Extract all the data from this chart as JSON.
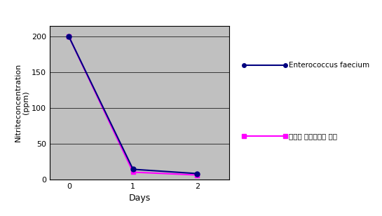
{
  "days": [
    0,
    1,
    2
  ],
  "series1_values": [
    200,
    14,
    8
  ],
  "series1_label": "Enterococcus faecium",
  "series1_color": "#000080",
  "series1_marker": "o",
  "series2_values": [
    200,
    10,
    6
  ],
  "series2_label": "러시아 발효소세지 균주",
  "series2_color": "#ff00ff",
  "series2_marker": "s",
  "xlabel": "Days",
  "ylabel": "Nitriteconcentration\n(ppm)",
  "xlim": [
    -0.3,
    2.5
  ],
  "ylim": [
    0,
    215
  ],
  "yticks": [
    0,
    50,
    100,
    150,
    200
  ],
  "xticks": [
    0,
    1,
    2
  ],
  "plot_bg_color": "#c0c0c0",
  "fig_bg_color": "#ffffff",
  "grid_color": "#000000",
  "linewidth": 1.5,
  "markersize": 5
}
